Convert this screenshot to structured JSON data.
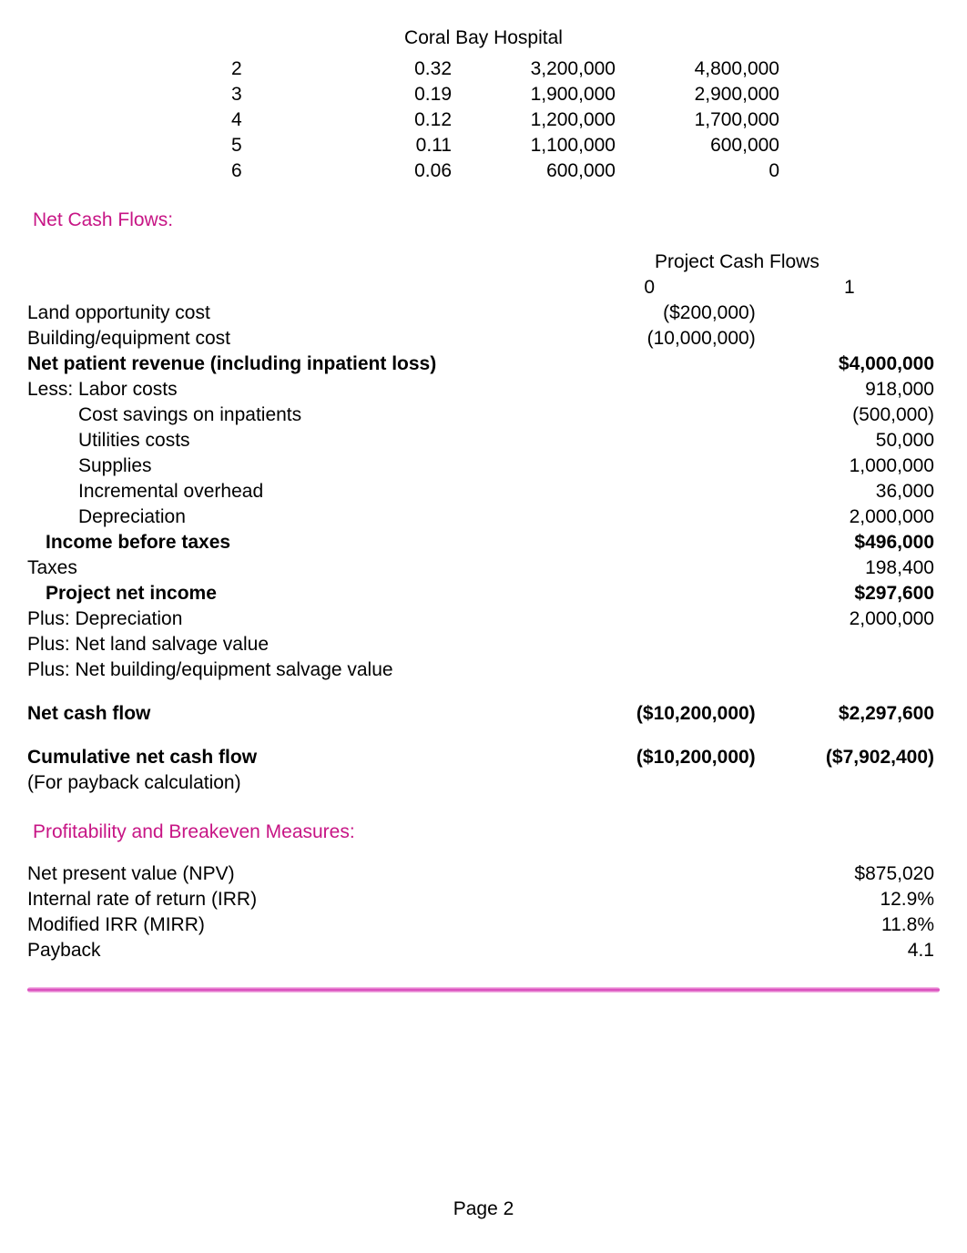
{
  "colors": {
    "text": "#000000",
    "accent": "#c71585",
    "background": "#ffffff",
    "divider_gradient": [
      "#f7c9ec",
      "#d63ab6",
      "#f7c9ec"
    ]
  },
  "typography": {
    "font_family": "Arial",
    "base_fontsize_pt": 16
  },
  "title": "Coral Bay Hospital",
  "top_table": {
    "type": "table",
    "columns": [
      "year",
      "factor",
      "value_a",
      "value_b"
    ],
    "rows": [
      {
        "year": "2",
        "factor": "0.32",
        "value_a": "3,200,000",
        "value_b": "4,800,000"
      },
      {
        "year": "3",
        "factor": "0.19",
        "value_a": "1,900,000",
        "value_b": "2,900,000"
      },
      {
        "year": "4",
        "factor": "0.12",
        "value_a": "1,200,000",
        "value_b": "1,700,000"
      },
      {
        "year": "5",
        "factor": "0.11",
        "value_a": "1,100,000",
        "value_b": "600,000"
      },
      {
        "year": "6",
        "factor": "0.06",
        "value_a": "600,000",
        "value_b": "0"
      }
    ]
  },
  "sections": {
    "net_cash_flows_heading": "Net Cash Flows:",
    "profitability_heading": "Profitability and Breakeven Measures:"
  },
  "cash_flows": {
    "header_span": "Project Cash Flows",
    "col0_label": "0",
    "col1_label": "1",
    "rows": {
      "land_opp": {
        "label": "Land opportunity cost",
        "col0": "($200,000)",
        "col1": ""
      },
      "build_equip": {
        "label": "Building/equipment cost",
        "col0": "(10,000,000)",
        "col1": ""
      },
      "net_patient_rev": {
        "label": "Net patient revenue (including inpatient loss)",
        "col0": "",
        "col1": "$4,000,000",
        "bold": true
      },
      "labor": {
        "label": "Less: Labor costs",
        "col0": "",
        "col1": "918,000"
      },
      "cost_savings": {
        "label": "Cost savings on inpatients",
        "col0": "",
        "col1": "(500,000)",
        "indent": true
      },
      "utilities": {
        "label": "Utilities costs",
        "col0": "",
        "col1": "50,000",
        "indent": true
      },
      "supplies": {
        "label": "Supplies",
        "col0": "",
        "col1": "1,000,000",
        "indent": true
      },
      "inc_overhead": {
        "label": "Incremental overhead",
        "col0": "",
        "col1": "36,000",
        "indent": true
      },
      "depreciation": {
        "label": "Depreciation",
        "col0": "",
        "col1": "2,000,000",
        "indent": true
      },
      "income_before": {
        "label": "Income before taxes",
        "col0": "",
        "col1": "$496,000",
        "bold": true,
        "half_indent": true
      },
      "taxes": {
        "label": "Taxes",
        "col0": "",
        "col1": "198,400"
      },
      "proj_net_income": {
        "label": "Project net income",
        "col0": "",
        "col1": "$297,600",
        "bold": true,
        "half_indent": true
      },
      "plus_dep": {
        "label": "Plus: Depreciation",
        "col0": "",
        "col1": "2,000,000"
      },
      "plus_land": {
        "label": "Plus: Net land salvage value",
        "col0": "",
        "col1": ""
      },
      "plus_build": {
        "label": "Plus: Net building/equipment salvage value",
        "col0": "",
        "col1": ""
      },
      "net_cash_flow": {
        "label": "Net cash flow",
        "col0": "($10,200,000)",
        "col1": "$2,297,600",
        "bold": true
      },
      "cum_net_cf": {
        "label": "Cumulative net cash flow",
        "col0": "($10,200,000)",
        "col1": "($7,902,400)",
        "bold": true
      },
      "payback_calc": {
        "label": "(For payback calculation)",
        "col0": "",
        "col1": ""
      }
    }
  },
  "measures": {
    "npv": {
      "label": "Net present value (NPV)",
      "value": "$875,020"
    },
    "irr": {
      "label": "Internal rate of return (IRR)",
      "value": "12.9%"
    },
    "mirr": {
      "label": "Modified IRR (MIRR)",
      "value": "11.8%"
    },
    "payback": {
      "label": "Payback",
      "value": "4.1"
    }
  },
  "footer": "Page 2"
}
